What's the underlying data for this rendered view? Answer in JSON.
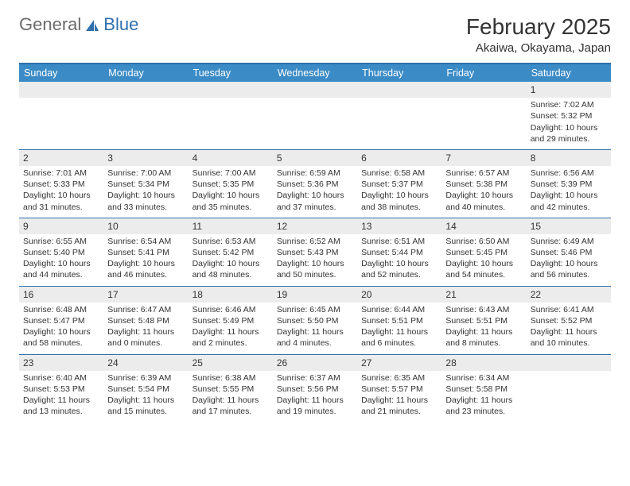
{
  "colors": {
    "header_bg": "#3b8bc6",
    "header_text": "#ffffff",
    "divider": "#2f6fac",
    "daynum_bg": "#ececec",
    "body_text": "#333333",
    "logo_gray": "#6b6b6b",
    "logo_blue": "#2f6fac",
    "page_bg": "#ffffff"
  },
  "typography": {
    "title_fontsize": 28,
    "subtitle_fontsize": 15,
    "dayhead_fontsize": 12.5,
    "daynum_fontsize": 12,
    "body_fontsize": 10.5,
    "font_family": "Arial"
  },
  "logo": {
    "text1": "General",
    "text2": "Blue"
  },
  "title": "February 2025",
  "subtitle": "Akaiwa, Okayama, Japan",
  "weekdays": [
    "Sunday",
    "Monday",
    "Tuesday",
    "Wednesday",
    "Thursday",
    "Friday",
    "Saturday"
  ],
  "weeks": [
    [
      null,
      null,
      null,
      null,
      null,
      null,
      {
        "n": "1",
        "sr": "Sunrise: 7:02 AM",
        "ss": "Sunset: 5:32 PM",
        "dl": "Daylight: 10 hours and 29 minutes."
      }
    ],
    [
      {
        "n": "2",
        "sr": "Sunrise: 7:01 AM",
        "ss": "Sunset: 5:33 PM",
        "dl": "Daylight: 10 hours and 31 minutes."
      },
      {
        "n": "3",
        "sr": "Sunrise: 7:00 AM",
        "ss": "Sunset: 5:34 PM",
        "dl": "Daylight: 10 hours and 33 minutes."
      },
      {
        "n": "4",
        "sr": "Sunrise: 7:00 AM",
        "ss": "Sunset: 5:35 PM",
        "dl": "Daylight: 10 hours and 35 minutes."
      },
      {
        "n": "5",
        "sr": "Sunrise: 6:59 AM",
        "ss": "Sunset: 5:36 PM",
        "dl": "Daylight: 10 hours and 37 minutes."
      },
      {
        "n": "6",
        "sr": "Sunrise: 6:58 AM",
        "ss": "Sunset: 5:37 PM",
        "dl": "Daylight: 10 hours and 38 minutes."
      },
      {
        "n": "7",
        "sr": "Sunrise: 6:57 AM",
        "ss": "Sunset: 5:38 PM",
        "dl": "Daylight: 10 hours and 40 minutes."
      },
      {
        "n": "8",
        "sr": "Sunrise: 6:56 AM",
        "ss": "Sunset: 5:39 PM",
        "dl": "Daylight: 10 hours and 42 minutes."
      }
    ],
    [
      {
        "n": "9",
        "sr": "Sunrise: 6:55 AM",
        "ss": "Sunset: 5:40 PM",
        "dl": "Daylight: 10 hours and 44 minutes."
      },
      {
        "n": "10",
        "sr": "Sunrise: 6:54 AM",
        "ss": "Sunset: 5:41 PM",
        "dl": "Daylight: 10 hours and 46 minutes."
      },
      {
        "n": "11",
        "sr": "Sunrise: 6:53 AM",
        "ss": "Sunset: 5:42 PM",
        "dl": "Daylight: 10 hours and 48 minutes."
      },
      {
        "n": "12",
        "sr": "Sunrise: 6:52 AM",
        "ss": "Sunset: 5:43 PM",
        "dl": "Daylight: 10 hours and 50 minutes."
      },
      {
        "n": "13",
        "sr": "Sunrise: 6:51 AM",
        "ss": "Sunset: 5:44 PM",
        "dl": "Daylight: 10 hours and 52 minutes."
      },
      {
        "n": "14",
        "sr": "Sunrise: 6:50 AM",
        "ss": "Sunset: 5:45 PM",
        "dl": "Daylight: 10 hours and 54 minutes."
      },
      {
        "n": "15",
        "sr": "Sunrise: 6:49 AM",
        "ss": "Sunset: 5:46 PM",
        "dl": "Daylight: 10 hours and 56 minutes."
      }
    ],
    [
      {
        "n": "16",
        "sr": "Sunrise: 6:48 AM",
        "ss": "Sunset: 5:47 PM",
        "dl": "Daylight: 10 hours and 58 minutes."
      },
      {
        "n": "17",
        "sr": "Sunrise: 6:47 AM",
        "ss": "Sunset: 5:48 PM",
        "dl": "Daylight: 11 hours and 0 minutes."
      },
      {
        "n": "18",
        "sr": "Sunrise: 6:46 AM",
        "ss": "Sunset: 5:49 PM",
        "dl": "Daylight: 11 hours and 2 minutes."
      },
      {
        "n": "19",
        "sr": "Sunrise: 6:45 AM",
        "ss": "Sunset: 5:50 PM",
        "dl": "Daylight: 11 hours and 4 minutes."
      },
      {
        "n": "20",
        "sr": "Sunrise: 6:44 AM",
        "ss": "Sunset: 5:51 PM",
        "dl": "Daylight: 11 hours and 6 minutes."
      },
      {
        "n": "21",
        "sr": "Sunrise: 6:43 AM",
        "ss": "Sunset: 5:51 PM",
        "dl": "Daylight: 11 hours and 8 minutes."
      },
      {
        "n": "22",
        "sr": "Sunrise: 6:41 AM",
        "ss": "Sunset: 5:52 PM",
        "dl": "Daylight: 11 hours and 10 minutes."
      }
    ],
    [
      {
        "n": "23",
        "sr": "Sunrise: 6:40 AM",
        "ss": "Sunset: 5:53 PM",
        "dl": "Daylight: 11 hours and 13 minutes."
      },
      {
        "n": "24",
        "sr": "Sunrise: 6:39 AM",
        "ss": "Sunset: 5:54 PM",
        "dl": "Daylight: 11 hours and 15 minutes."
      },
      {
        "n": "25",
        "sr": "Sunrise: 6:38 AM",
        "ss": "Sunset: 5:55 PM",
        "dl": "Daylight: 11 hours and 17 minutes."
      },
      {
        "n": "26",
        "sr": "Sunrise: 6:37 AM",
        "ss": "Sunset: 5:56 PM",
        "dl": "Daylight: 11 hours and 19 minutes."
      },
      {
        "n": "27",
        "sr": "Sunrise: 6:35 AM",
        "ss": "Sunset: 5:57 PM",
        "dl": "Daylight: 11 hours and 21 minutes."
      },
      {
        "n": "28",
        "sr": "Sunrise: 6:34 AM",
        "ss": "Sunset: 5:58 PM",
        "dl": "Daylight: 11 hours and 23 minutes."
      },
      null
    ]
  ]
}
